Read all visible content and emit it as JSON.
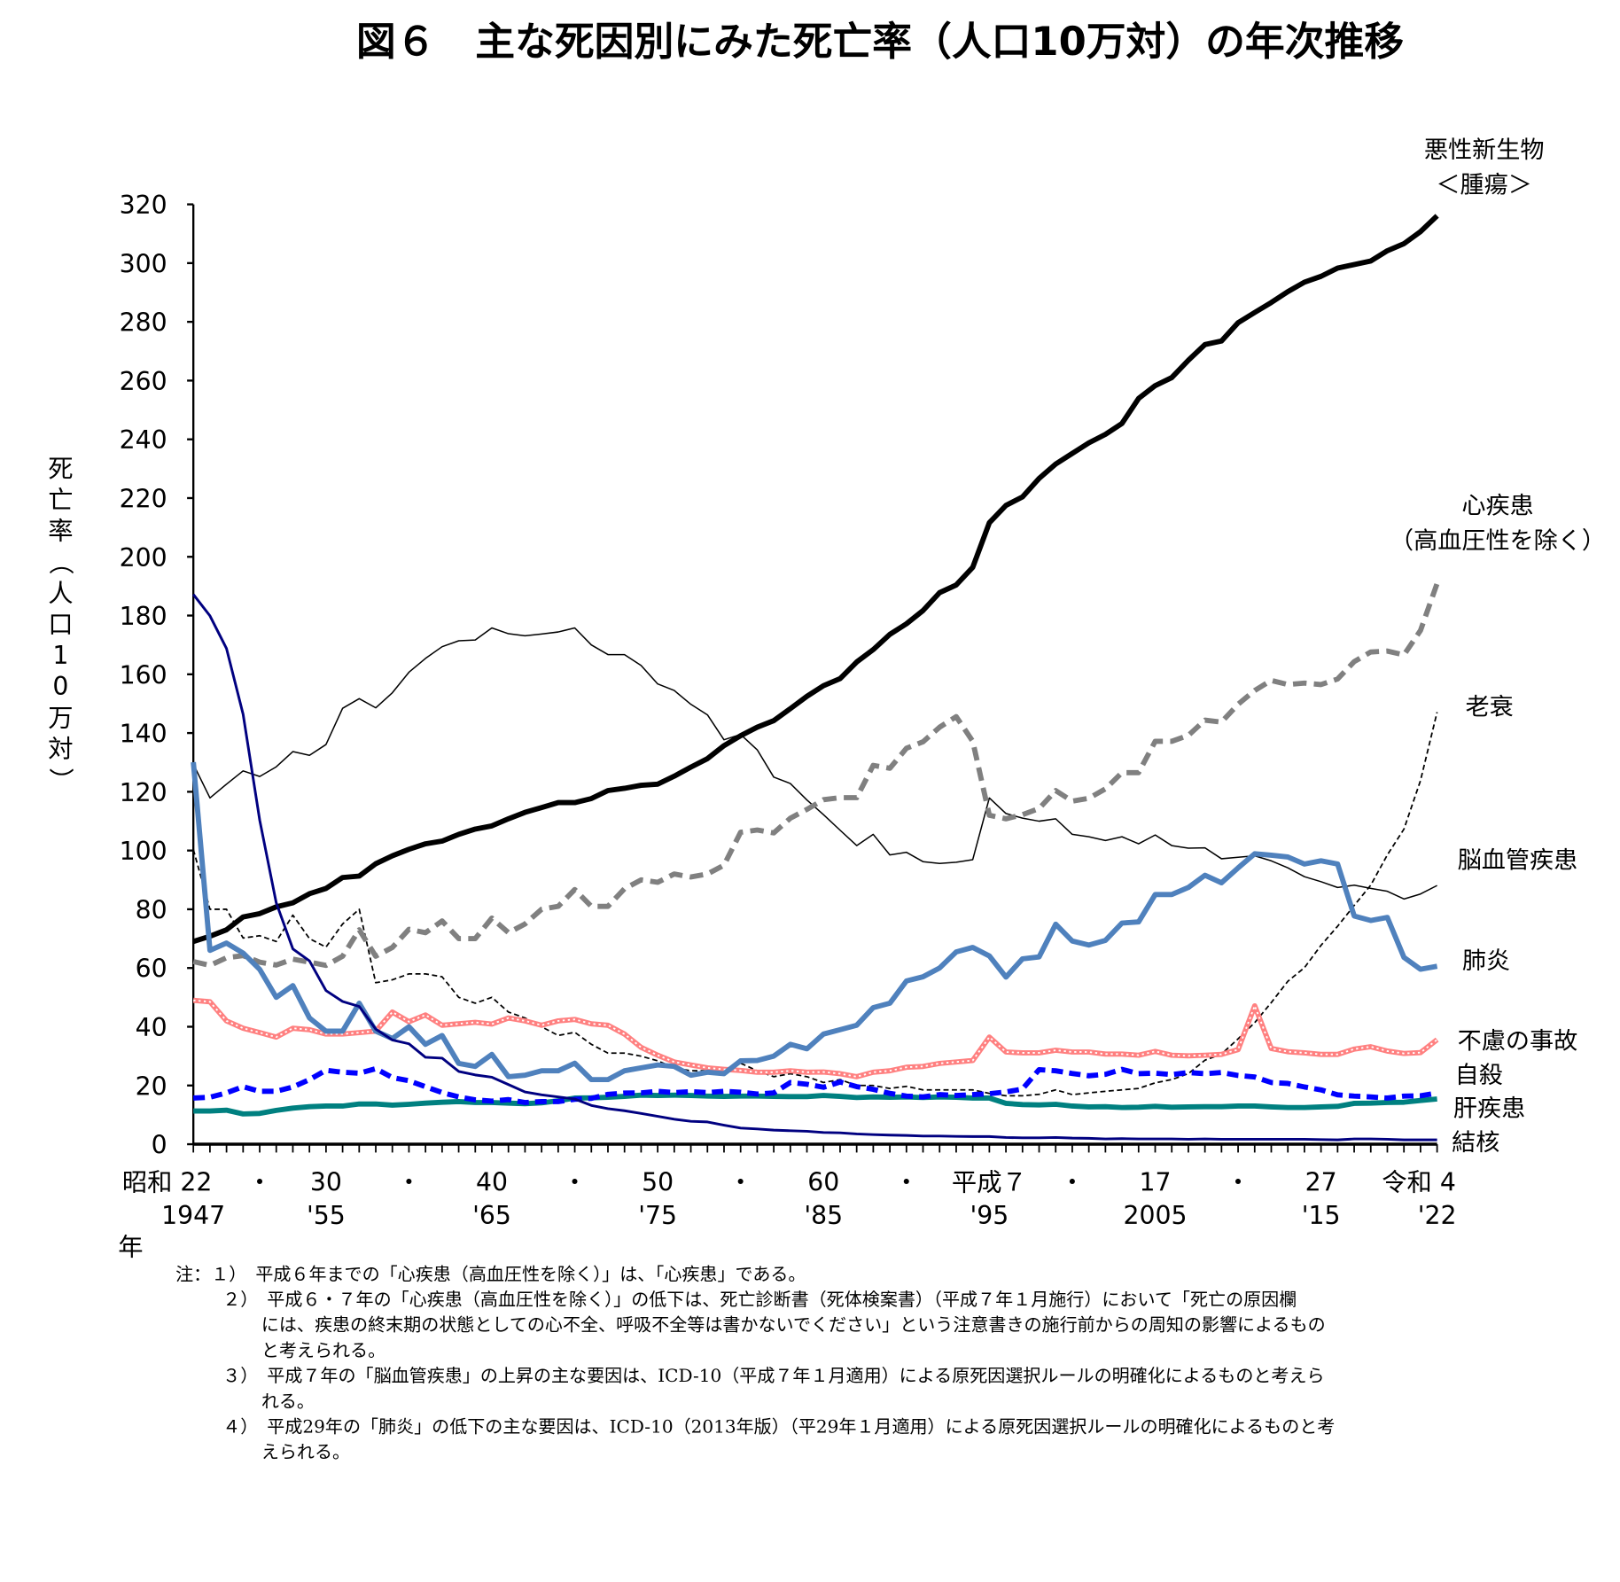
{
  "chart_data": {
    "type": "line",
    "title": "図６　主な死因別にみた死亡率（人口10万対）の年次推移",
    "ylabel": "死亡率（人口10万対）",
    "xlabel": "年",
    "ylim": [
      0,
      320
    ],
    "yticks": [
      0,
      20,
      40,
      60,
      80,
      100,
      120,
      140,
      160,
      180,
      200,
      220,
      240,
      260,
      280,
      300,
      320
    ],
    "x_start": 1947,
    "x_end": 2022,
    "xtick_labels": [
      {
        "year": 1947,
        "era": "昭和 22",
        "western": "1947"
      },
      {
        "year": 1951,
        "era": "・",
        "western": ""
      },
      {
        "year": 1955,
        "era": "30",
        "western": "'55"
      },
      {
        "year": 1960,
        "era": "・",
        "western": ""
      },
      {
        "year": 1965,
        "era": "40",
        "western": "'65"
      },
      {
        "year": 1970,
        "era": "・",
        "western": ""
      },
      {
        "year": 1975,
        "era": "50",
        "western": "'75"
      },
      {
        "year": 1980,
        "era": "・",
        "western": ""
      },
      {
        "year": 1985,
        "era": "60",
        "western": "'85"
      },
      {
        "year": 1990,
        "era": "・",
        "western": ""
      },
      {
        "year": 1995,
        "era": "平成７",
        "western": "'95"
      },
      {
        "year": 2000,
        "era": "・",
        "western": ""
      },
      {
        "year": 2005,
        "era": "17",
        "western": "2005"
      },
      {
        "year": 2010,
        "era": "・",
        "western": ""
      },
      {
        "year": 2015,
        "era": "27",
        "western": "'15"
      },
      {
        "year": 2022,
        "era": "令和 4",
        "western": "'22"
      }
    ],
    "series": [
      {
        "name": "悪性新生物＜腫瘍＞",
        "name_lines": [
          "悪性新生物",
          "＜腫瘍＞"
        ],
        "color": "#000000",
        "style": "solid-thick",
        "values": [
          69.0,
          70.8,
          73.0,
          77.4,
          78.5,
          80.8,
          82.2,
          85.3,
          87.1,
          90.8,
          91.3,
          95.5,
          98.2,
          100.4,
          102.3,
          103.2,
          105.5,
          107.3,
          108.4,
          110.8,
          113.0,
          114.6,
          116.3,
          116.3,
          117.7,
          120.4,
          121.2,
          122.2,
          122.6,
          125.3,
          128.4,
          131.3,
          135.7,
          139.1,
          142.0,
          144.2,
          148.3,
          152.5,
          156.1,
          158.5,
          164.2,
          168.4,
          173.6,
          177.2,
          181.7,
          187.8,
          190.4,
          196.4,
          211.6,
          217.5,
          220.4,
          226.7,
          231.6,
          235.2,
          238.8,
          241.7,
          245.4,
          253.9,
          258.3,
          261.0,
          266.9,
          272.3,
          273.5,
          279.7,
          283.2,
          286.6,
          290.3,
          293.5,
          295.5,
          298.3,
          299.5,
          300.7,
          304.2,
          306.6,
          310.7,
          316.1
        ]
      },
      {
        "name": "心疾患（高血圧性を除く）",
        "name_lines": [
          "心疾患",
          "（高血圧性を除く）"
        ],
        "color": "#808080",
        "style": "dashed-thick",
        "values": [
          62.2,
          60.9,
          63.5,
          64.2,
          62,
          61,
          63,
          62,
          60.9,
          64,
          73,
          64,
          67,
          73.2,
          72,
          76,
          70,
          70,
          77.0,
          72,
          75,
          80,
          81,
          86.7,
          81,
          81,
          87,
          90,
          89.2,
          92,
          91,
          92,
          95,
          106.2,
          107,
          106,
          111,
          114,
          117.3,
          118,
          118,
          129,
          128,
          134.8,
          137,
          142,
          145.6,
          137.2,
          112.0,
          110.8,
          112.2,
          114.3,
          120.4,
          116.8,
          117.8,
          121.0,
          126.5,
          126.5,
          137.2,
          137.2,
          139.2,
          144.4,
          143.7,
          149.8,
          154.5,
          157.9,
          156.5,
          157.0,
          156.5,
          158.4,
          164.3,
          167.6,
          167.9,
          166.6,
          174.9,
          190.9
        ]
      },
      {
        "name": "老衰",
        "name_lines": [
          "老衰"
        ],
        "color": "#000000",
        "style": "dashed-thin",
        "values": [
          100.3,
          80,
          80,
          70.2,
          71,
          69,
          78,
          70,
          67.1,
          75,
          80,
          55,
          56,
          58.0,
          58,
          57,
          50,
          48,
          50.0,
          45,
          43,
          40,
          37,
          38.1,
          34,
          31,
          31,
          30,
          28.4,
          26,
          25,
          25,
          25,
          27.6,
          25,
          23,
          24,
          23,
          21,
          22,
          20,
          20,
          19,
          19.7,
          18.5,
          18.5,
          18.5,
          18.5,
          17.3,
          16.5,
          16.5,
          17,
          18.5,
          16.9,
          17.5,
          18,
          18.5,
          19,
          20.9,
          22,
          24,
          28.6,
          30.7,
          35.9,
          41.4,
          48.2,
          55.5,
          60.1,
          67.7,
          74.2,
          81.3,
          88.2,
          98.5,
          107.3,
          123.8,
          147.1
        ]
      },
      {
        "name": "脳血管疾患",
        "name_lines": [
          "脳血管疾患"
        ],
        "color": "#000000",
        "style": "solid-thin",
        "values": [
          129.4,
          117.9,
          122.6,
          127.1,
          125.2,
          128.5,
          133.7,
          132.4,
          136.1,
          148.4,
          151.7,
          148.6,
          153.7,
          160.7,
          165.4,
          169.4,
          171.4,
          171.7,
          175.8,
          173.8,
          173.1,
          173.7,
          174.4,
          175.8,
          170,
          166.7,
          166.7,
          163,
          156.7,
          154.5,
          149.8,
          146.2,
          137.7,
          139.5,
          134.3,
          125,
          122.8,
          117.2,
          112.2,
          106.9,
          101.7,
          105.5,
          98.5,
          99.4,
          96.2,
          95.6,
          96,
          96.9,
          117.9,
          112.6,
          111,
          110,
          110.8,
          105.5,
          104.7,
          103.4,
          104.7,
          102.3,
          105.3,
          101.7,
          100.8,
          100.9,
          97.2,
          97.7,
          98.2,
          96.5,
          94.1,
          91.1,
          89.4,
          87.4,
          88.2,
          87.1,
          86.1,
          83.5,
          85.2,
          88.1
        ]
      },
      {
        "name": "肺炎",
        "name_lines": [
          "肺炎"
        ],
        "color": "#4F81BD",
        "style": "solid-thick",
        "values": [
          130.1,
          66,
          68.5,
          65.1,
          59.5,
          50,
          54,
          43,
          38.5,
          38.5,
          48,
          38.5,
          36,
          40,
          34,
          37,
          27.5,
          26.5,
          30.6,
          23,
          23.5,
          25,
          25,
          27.6,
          22,
          22,
          25,
          26,
          27,
          26.5,
          23.5,
          24.5,
          24,
          28.4,
          28.5,
          30,
          34,
          32.5,
          37.5,
          39,
          40.5,
          46.5,
          48,
          55.6,
          57,
          60,
          65.5,
          67,
          64.1,
          56.9,
          63.1,
          63.8,
          74.9,
          69.2,
          67.8,
          69.4,
          75.3,
          75.7,
          85.0,
          85.0,
          87.4,
          91.6,
          89.0,
          94.1,
          98.9,
          98.4,
          97.8,
          95.4,
          96.5,
          95.4,
          77.7,
          76.2,
          77.2,
          63.6,
          59.6,
          60.6
        ]
      },
      {
        "name": "不慮の事故",
        "name_lines": [
          "不慮の事故"
        ],
        "color": "#FF8080",
        "style": "dotted-thick",
        "values": [
          49,
          48.5,
          42,
          39.5,
          38,
          36.5,
          39.5,
          39,
          37.5,
          37.5,
          38,
          38.5,
          45,
          41.7,
          44,
          40.5,
          41,
          41.5,
          40.9,
          43,
          42,
          40.5,
          42,
          42.5,
          41,
          40.5,
          37.5,
          33,
          30.3,
          28,
          27,
          26,
          25.5,
          25.1,
          24.5,
          24.5,
          25,
          24.5,
          24.6,
          24,
          23,
          24.5,
          25,
          26.2,
          26.5,
          27.5,
          28,
          28.5,
          36.5,
          31.4,
          31.1,
          31.1,
          32,
          31.4,
          31.4,
          30.7,
          30.7,
          30.3,
          31.6,
          30.3,
          30.1,
          30.3,
          30.6,
          32.2,
          47.1,
          32.6,
          31.5,
          31.1,
          30.6,
          30.6,
          32.4,
          33.2,
          31.7,
          30.9,
          31.2,
          35.6
        ]
      },
      {
        "name": "自殺",
        "name_lines": [
          "自殺"
        ],
        "color": "#0000FF",
        "style": "dashed-thick",
        "values": [
          15.7,
          16,
          17.5,
          19.6,
          18,
          18,
          19.5,
          22,
          25.2,
          24.5,
          24.2,
          25.7,
          22.7,
          21.6,
          19.6,
          17.6,
          16.1,
          15.1,
          14.7,
          15.2,
          14.2,
          14.5,
          14.5,
          15.3,
          15.6,
          17,
          17.4,
          17.5,
          18.0,
          17.6,
          17.9,
          17.6,
          18,
          17.7,
          17.1,
          17.5,
          21,
          20.4,
          19.4,
          21.2,
          19.6,
          18.7,
          17.3,
          16.4,
          16.1,
          16.9,
          16.6,
          16.9,
          17.2,
          17.8,
          18.8,
          25.4,
          25.0,
          24.1,
          23.3,
          23.8,
          25.5,
          24.0,
          24.2,
          23.7,
          24.4,
          24.0,
          24.4,
          23.4,
          22.9,
          21.0,
          20.7,
          19.5,
          18.5,
          16.8,
          16.4,
          16.1,
          15.7,
          16.4,
          16.5,
          17.4
        ]
      },
      {
        "name": "肝疾患",
        "name_lines": [
          "肝疾患"
        ],
        "color": "#008080",
        "style": "solid-thick",
        "values": [
          11.3,
          11.3,
          11.6,
          10.3,
          10.5,
          11.5,
          12.3,
          12.8,
          13.0,
          13,
          13.7,
          13.7,
          13.3,
          13.6,
          14.0,
          14.3,
          14.5,
          14.2,
          14.2,
          14.0,
          13.8,
          14.1,
          14.8,
          15.7,
          15.8,
          16.0,
          16.3,
          16.7,
          16.6,
          16.7,
          16.6,
          16.4,
          16.3,
          16.4,
          16.4,
          16.3,
          16.2,
          16.2,
          16.6,
          16.3,
          15.9,
          16.1,
          16.0,
          16.1,
          15.9,
          16.1,
          16.0,
          15.7,
          15.7,
          13.9,
          13.5,
          13.4,
          13.6,
          13.0,
          12.7,
          12.8,
          12.5,
          12.6,
          12.9,
          12.6,
          12.7,
          12.8,
          12.8,
          13.0,
          13.0,
          12.7,
          12.5,
          12.5,
          12.7,
          12.9,
          13.9,
          14.0,
          14.2,
          14.3,
          14.9,
          15.4
        ]
      },
      {
        "name": "結核",
        "name_lines": [
          "結核"
        ],
        "color": "#000080",
        "style": "solid-medium",
        "values": [
          187.2,
          179.9,
          168.8,
          146.4,
          110.3,
          82.2,
          66.5,
          62.4,
          52.3,
          48.6,
          46.9,
          39.2,
          35.5,
          34.2,
          29.6,
          29.3,
          24.8,
          23.6,
          22.8,
          20.3,
          17.8,
          16.8,
          16.1,
          15.4,
          13.2,
          12.1,
          11.4,
          10.5,
          9.5,
          8.5,
          7.8,
          7.6,
          6.5,
          5.5,
          5.2,
          4.8,
          4.6,
          4.4,
          4.0,
          3.9,
          3.5,
          3.3,
          3.1,
          3.0,
          2.8,
          2.8,
          2.7,
          2.6,
          2.6,
          2.3,
          2.2,
          2.2,
          2.3,
          2.1,
          2.0,
          1.8,
          1.9,
          1.8,
          1.8,
          1.8,
          1.7,
          1.8,
          1.7,
          1.7,
          1.7,
          1.7,
          1.7,
          1.7,
          1.6,
          1.5,
          1.8,
          1.8,
          1.7,
          1.5,
          1.5,
          1.5
        ]
      }
    ],
    "notes": [
      "注：１）　平成６年までの「心疾患（高血圧性を除く）」は、「心疾患」である。",
      "２）　平成６・７年の「心疾患（高血圧性を除く）」の低下は、死亡診断書（死体検案書）（平成７年１月施行）において「死亡の原因欄",
      "には、疾患の終末期の状態としての心不全、呼吸不全等は書かないでください」という注意書きの施行前からの周知の影響によるもの",
      "と考えられる。",
      "３）　平成７年の「脳血管疾患」の上昇の主な要因は、ICD-10（平成７年１月適用）による原死因選択ルールの明確化によるものと考えら",
      "れる。",
      "４）　平成29年の「肺炎」の低下の主な要因は、ICD-10（2013年版）（平29年１月適用）による原死因選択ルールの明確化によるものと考",
      "えられる。"
    ]
  }
}
